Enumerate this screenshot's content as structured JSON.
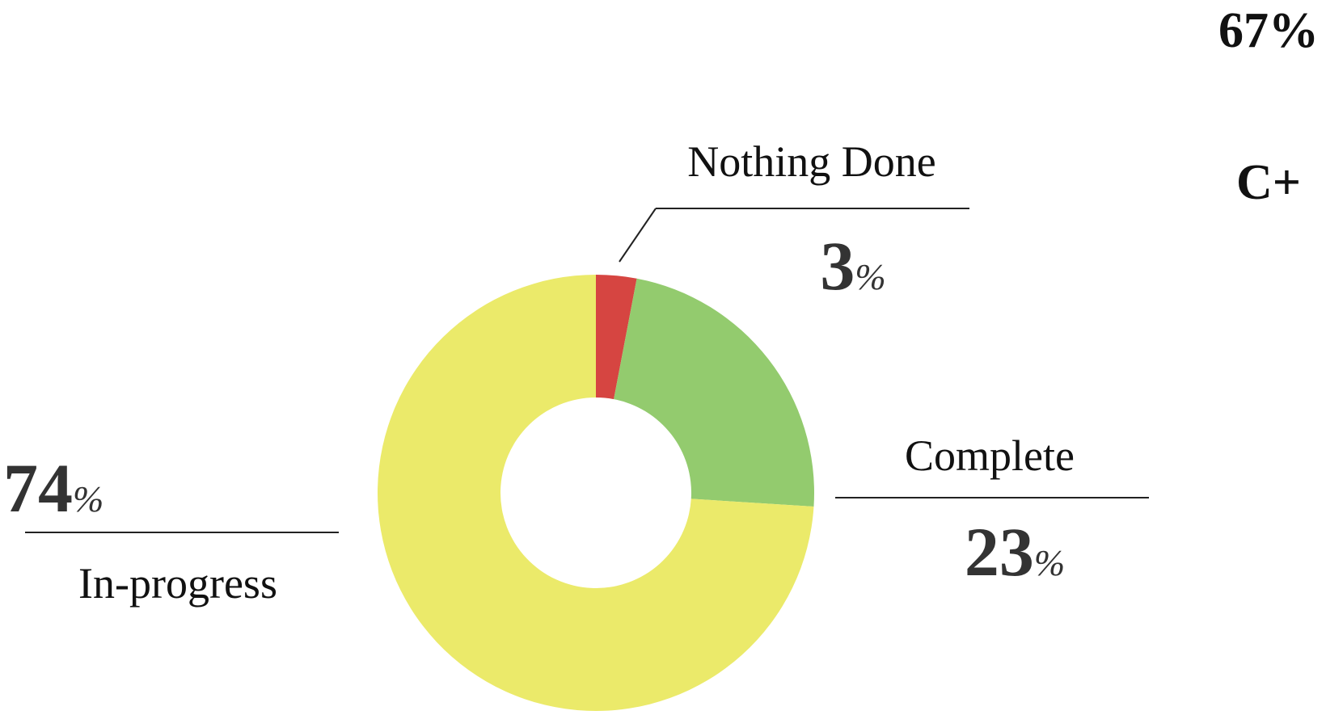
{
  "chart_data": {
    "type": "pie",
    "donut": true,
    "categories": [
      "Nothing Done",
      "Complete",
      "In-progress"
    ],
    "values": [
      3,
      23,
      74
    ],
    "colors": [
      "#d64541",
      "#93cb6e",
      "#ebea6a"
    ],
    "unit": "%",
    "annotations": [
      "67%",
      "C+"
    ]
  }
}
